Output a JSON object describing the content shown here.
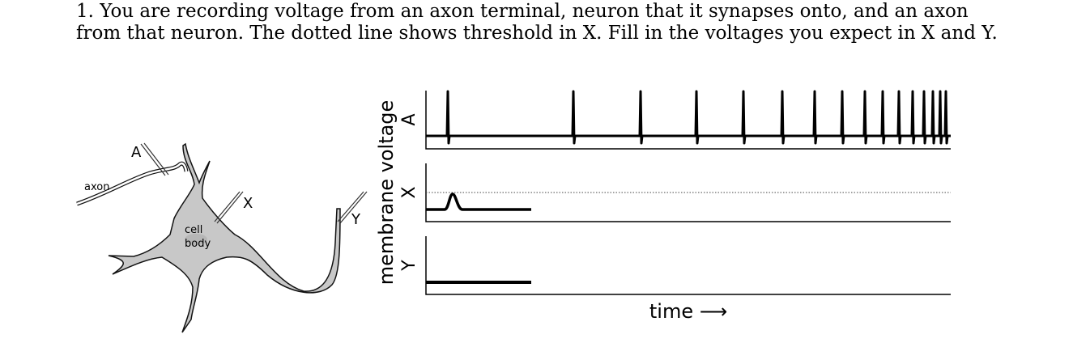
{
  "question": "1. You are recording voltage from an axon terminal, neuron that it synapses onto, and an axon from that neuron. The dotted line shows threshold in X. Fill in the voltages you expect in X and Y.",
  "diagram": {
    "labels": {
      "a": "A",
      "axon": "axon",
      "x": "X",
      "cell": "cell",
      "body": "body",
      "y": "Y"
    }
  },
  "plot": {
    "y_axis_label": "membrane voltage",
    "x_axis_label": "time ⟶",
    "panels": [
      "A",
      "X",
      "Y"
    ]
  }
}
